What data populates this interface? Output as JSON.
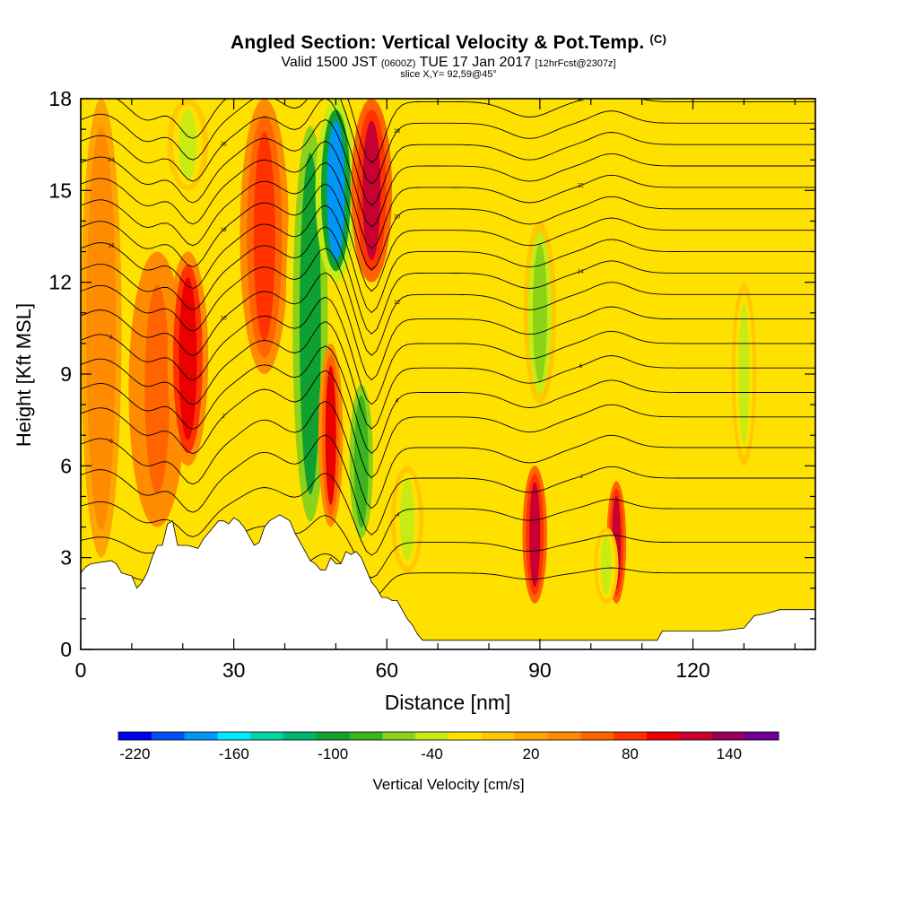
{
  "header": {
    "title": "Angled Section: Vertical Velocity & Pot.Temp.",
    "title_units": "(C)",
    "valid_prefix": "Valid 1500 JST",
    "valid_utc": "(0600Z)",
    "valid_date": "TUE 17 Jan 2017",
    "forecast": "[12hrFcst@2307z]",
    "slice": "slice X,Y= 92,59@45°"
  },
  "chart_data": {
    "type": "heatmap",
    "xlabel": "Distance [nm]",
    "ylabel": "Height [Kft MSL]",
    "xlim": [
      0,
      144
    ],
    "ylim": [
      0,
      18
    ],
    "xticks": [
      "0",
      "30",
      "60",
      "90",
      "120"
    ],
    "xtick_values": [
      0,
      30,
      60,
      90,
      120
    ],
    "yticks": [
      "0",
      "3",
      "6",
      "9",
      "12",
      "15",
      "18"
    ],
    "ytick_values": [
      0,
      3,
      6,
      9,
      12,
      15,
      18
    ],
    "background_color": "#ffe100",
    "features": [
      {
        "kind": "updraft",
        "x": 4,
        "ylo": 3,
        "yhi": 18,
        "w": 2.5,
        "value": 40
      },
      {
        "kind": "updraft",
        "x": 15,
        "ylo": 4,
        "yhi": 13,
        "w": 3.5,
        "value": 50
      },
      {
        "kind": "updraft",
        "x": 21,
        "ylo": 6,
        "yhi": 13,
        "w": 2.5,
        "value": 100
      },
      {
        "kind": "downdraft",
        "x": 21,
        "ylo": 15,
        "yhi": 18,
        "w": 2.5,
        "value": -40
      },
      {
        "kind": "updraft",
        "x": 36,
        "ylo": 9,
        "yhi": 18,
        "w": 3,
        "value": 70
      },
      {
        "kind": "downdraft",
        "x": 45,
        "ylo": 3.3,
        "yhi": 18,
        "w": 3,
        "value": -100
      },
      {
        "kind": "downdraft",
        "x": 50,
        "ylo": 12,
        "yhi": 18,
        "w": 2.5,
        "value": -180
      },
      {
        "kind": "updraft",
        "x": 49,
        "ylo": 4,
        "yhi": 10,
        "w": 1.5,
        "value": 90
      },
      {
        "kind": "downdraft",
        "x": 55,
        "ylo": 3.3,
        "yhi": 9,
        "w": 2,
        "value": -90
      },
      {
        "kind": "updraft",
        "x": 57,
        "ylo": 12,
        "yhi": 18,
        "w": 2.5,
        "value": 110
      },
      {
        "kind": "downdraft",
        "x": 64,
        "ylo": 2.5,
        "yhi": 6,
        "w": 2,
        "value": -50
      },
      {
        "kind": "downdraft",
        "x": 90,
        "ylo": 8,
        "yhi": 14,
        "w": 2,
        "value": -60
      },
      {
        "kind": "updraft",
        "x": 89,
        "ylo": 1.5,
        "yhi": 6,
        "w": 1.5,
        "value": 120
      },
      {
        "kind": "updraft",
        "x": 105,
        "ylo": 1.5,
        "yhi": 5.5,
        "w": 1.2,
        "value": 110
      },
      {
        "kind": "downdraft",
        "x": 103,
        "ylo": 1.5,
        "yhi": 4,
        "w": 1.5,
        "value": -40
      },
      {
        "kind": "downdraft",
        "x": 130,
        "ylo": 6,
        "yhi": 12,
        "w": 1.5,
        "value": -50
      }
    ],
    "theta_contours": {
      "label_values": [
        -8,
        -6,
        -4,
        -2,
        0,
        2,
        4,
        6,
        8,
        10,
        12,
        14,
        16,
        18,
        20,
        22,
        24,
        26,
        28,
        30
      ],
      "base_heights_kft": [
        2.5,
        3.5,
        4.6,
        5.6,
        6.6,
        7.6,
        8.4,
        9.2,
        10.0,
        10.8,
        11.6,
        12.3,
        13.0,
        13.7,
        14.4,
        15.1,
        15.8,
        16.5,
        17.2,
        17.9
      ],
      "wave_displacements": [
        {
          "x": 4,
          "dz": 0.3,
          "w": 4
        },
        {
          "x": 13,
          "dz": -0.6,
          "w": 4
        },
        {
          "x": 22,
          "dz": -1.2,
          "w": 4
        },
        {
          "x": 36,
          "dz": 0.9,
          "w": 6
        },
        {
          "x": 48,
          "dz": 1.5,
          "w": 4
        },
        {
          "x": 57,
          "dz": -2.0,
          "w": 3.5
        },
        {
          "x": 88,
          "dz": -0.5,
          "w": 6
        },
        {
          "x": 104,
          "dz": 0.4,
          "w": 5
        }
      ]
    },
    "terrain_kft": [
      [
        0,
        2.5
      ],
      [
        1,
        2.7
      ],
      [
        2,
        2.8
      ],
      [
        6,
        2.9
      ],
      [
        7,
        2.8
      ],
      [
        8,
        2.5
      ],
      [
        10,
        2.4
      ],
      [
        11,
        2.0
      ],
      [
        12,
        2.2
      ],
      [
        13,
        2.5
      ],
      [
        14,
        3.0
      ],
      [
        15,
        3.4
      ],
      [
        16,
        3.4
      ],
      [
        17,
        4.1
      ],
      [
        18,
        4.2
      ],
      [
        19,
        3.4
      ],
      [
        20,
        3.4
      ],
      [
        21,
        3.4
      ],
      [
        23,
        3.3
      ],
      [
        24,
        3.6
      ],
      [
        25,
        3.8
      ],
      [
        27,
        4.2
      ],
      [
        28,
        4.2
      ],
      [
        29,
        4.1
      ],
      [
        30,
        4.3
      ],
      [
        31,
        4.2
      ],
      [
        32,
        4.0
      ],
      [
        33,
        3.7
      ],
      [
        34,
        3.4
      ],
      [
        35,
        3.5
      ],
      [
        36,
        4.0
      ],
      [
        37,
        4.2
      ],
      [
        38,
        4.3
      ],
      [
        39,
        4.4
      ],
      [
        40,
        4.3
      ],
      [
        41,
        4.2
      ],
      [
        42,
        3.8
      ],
      [
        43,
        3.5
      ],
      [
        44,
        3.2
      ],
      [
        45,
        2.9
      ],
      [
        46,
        2.8
      ],
      [
        47,
        2.6
      ],
      [
        48,
        2.6
      ],
      [
        49,
        3.0
      ],
      [
        50,
        2.8
      ],
      [
        51,
        2.8
      ],
      [
        52,
        3.2
      ],
      [
        53,
        3.1
      ],
      [
        54,
        3.2
      ],
      [
        55,
        3.0
      ],
      [
        56,
        2.6
      ],
      [
        57,
        2.2
      ],
      [
        58,
        2.0
      ],
      [
        59,
        1.7
      ],
      [
        60,
        1.7
      ],
      [
        61,
        1.6
      ],
      [
        62,
        1.6
      ],
      [
        63,
        1.3
      ],
      [
        64,
        1.0
      ],
      [
        65,
        0.8
      ],
      [
        66,
        0.5
      ],
      [
        67,
        0.3
      ],
      [
        78,
        0.3
      ],
      [
        80,
        0.3
      ],
      [
        85,
        0.3
      ],
      [
        90,
        0.3
      ],
      [
        95,
        0.3
      ],
      [
        100,
        0.3
      ],
      [
        105,
        0.3
      ],
      [
        110,
        0.3
      ],
      [
        113,
        0.3
      ],
      [
        114,
        0.6
      ],
      [
        125,
        0.6
      ],
      [
        130,
        0.7
      ],
      [
        132,
        1.1
      ],
      [
        135,
        1.2
      ],
      [
        137,
        1.3
      ],
      [
        144,
        1.3
      ]
    ],
    "colorbar": {
      "title": "Vertical Velocity [cm/s]",
      "labels": [
        "-220",
        "-160",
        "-100",
        "-40",
        "20",
        "80",
        "140"
      ],
      "colors": [
        "#0000f0",
        "#0050f5",
        "#0096f5",
        "#00e6ff",
        "#00d2a0",
        "#00b46e",
        "#10a030",
        "#3cb41e",
        "#8cd219",
        "#c8eb14",
        "#ffe100",
        "#ffc800",
        "#ffa500",
        "#ff8c00",
        "#ff6400",
        "#ff3200",
        "#eb0000",
        "#c80032",
        "#96005a",
        "#6e0096"
      ]
    }
  }
}
